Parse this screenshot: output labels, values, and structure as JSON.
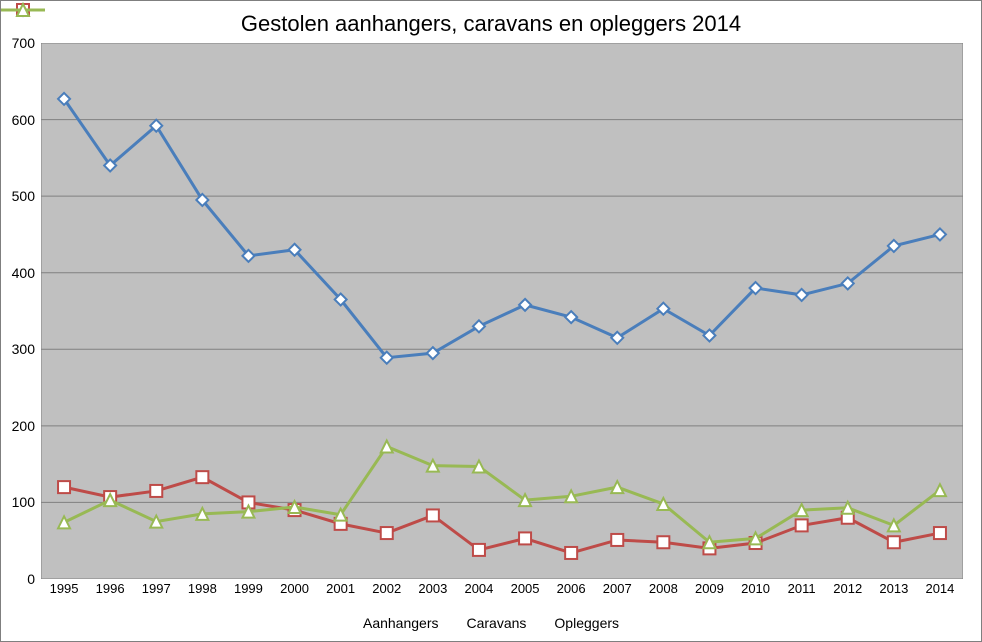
{
  "chart": {
    "type": "line",
    "title": "Gestolen aanhangers, caravans en opleggers 2014",
    "title_fontsize": 22,
    "background_color": "#ffffff",
    "plot_background_color": "#c0c0c0",
    "grid_color": "#808080",
    "axis_label_fontsize": 14,
    "line_width": 3,
    "marker_size": 6,
    "marker_fill": "#ffffff",
    "ylim": [
      0,
      700
    ],
    "ytick_step": 100,
    "yticks": [
      0,
      100,
      200,
      300,
      400,
      500,
      600,
      700
    ],
    "years": [
      1995,
      1996,
      1997,
      1998,
      1999,
      2000,
      2001,
      2002,
      2003,
      2004,
      2005,
      2006,
      2007,
      2008,
      2009,
      2010,
      2011,
      2012,
      2013,
      2014
    ],
    "series": [
      {
        "name": "Aanhangers",
        "color": "#4a7ebb",
        "marker": "diamond",
        "values": [
          627,
          540,
          592,
          495,
          422,
          430,
          365,
          289,
          295,
          330,
          358,
          342,
          315,
          353,
          318,
          380,
          371,
          386,
          435,
          450
        ]
      },
      {
        "name": "Caravans",
        "color": "#be4b48",
        "marker": "square",
        "values": [
          120,
          107,
          115,
          133,
          100,
          90,
          72,
          60,
          83,
          38,
          53,
          34,
          51,
          48,
          40,
          47,
          70,
          80,
          48,
          60
        ]
      },
      {
        "name": "Opleggers",
        "color": "#98b954",
        "marker": "triangle",
        "values": [
          74,
          103,
          75,
          85,
          88,
          94,
          84,
          173,
          148,
          147,
          103,
          108,
          120,
          98,
          48,
          53,
          90,
          93,
          70,
          116
        ]
      }
    ],
    "legend": {
      "position": "bottom",
      "fontsize": 14
    }
  }
}
